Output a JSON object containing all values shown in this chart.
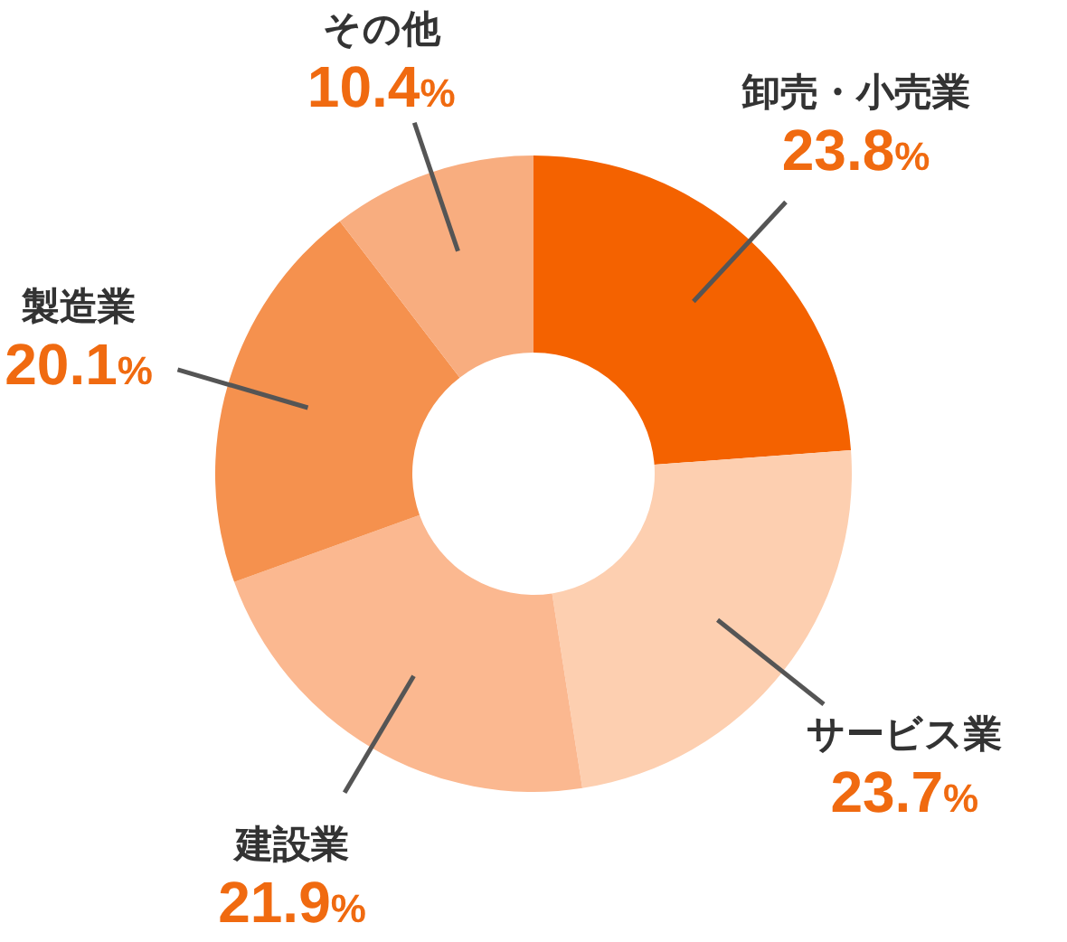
{
  "chart_data": {
    "type": "donut",
    "categories": [
      "卸売・小売業",
      "サービス業",
      "建設業",
      "製造業",
      "その他"
    ],
    "values": [
      23.8,
      23.7,
      21.9,
      20.1,
      10.4
    ],
    "colors": [
      "#f46200",
      "#fdcfb0",
      "#fbb890",
      "#f5914e",
      "#f8ad7f"
    ],
    "value_labels": [
      "23.8%",
      "23.7%",
      "21.9%",
      "20.1%",
      "10.4%"
    ]
  }
}
